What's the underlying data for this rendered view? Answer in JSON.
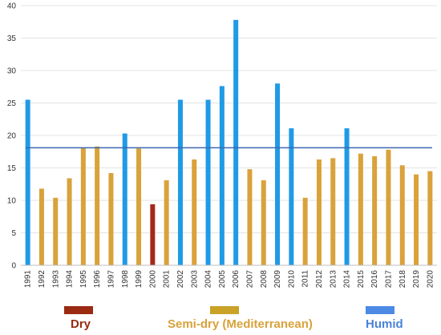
{
  "chart_data": {
    "type": "bar",
    "title": "",
    "xlabel": "",
    "ylabel": "",
    "ylim": [
      0,
      40
    ],
    "yticks": [
      0,
      5,
      10,
      15,
      20,
      25,
      30,
      35,
      40
    ],
    "grid": true,
    "categories": [
      "1991",
      "1992",
      "1993",
      "1994",
      "1995",
      "1996",
      "1997",
      "1998",
      "1999",
      "2000",
      "2001",
      "2002",
      "2003",
      "2004",
      "2005",
      "2006",
      "2007",
      "2008",
      "2009",
      "2010",
      "2011",
      "2012",
      "2013",
      "2014",
      "2015",
      "2016",
      "2017",
      "2018",
      "2019",
      "2020"
    ],
    "values": [
      25.5,
      11.8,
      10.4,
      13.4,
      18.1,
      18.3,
      14.2,
      20.3,
      18.0,
      9.4,
      13.1,
      25.5,
      16.3,
      25.5,
      27.6,
      37.8,
      14.8,
      13.1,
      28.0,
      21.1,
      10.4,
      16.3,
      16.5,
      21.1,
      17.2,
      16.8,
      17.8,
      15.4,
      14.0,
      14.5
    ],
    "classes": [
      "humid",
      "semidry",
      "semidry",
      "semidry",
      "semidry",
      "semidry",
      "semidry",
      "humid",
      "semidry",
      "dry",
      "semidry",
      "humid",
      "semidry",
      "humid",
      "humid",
      "humid",
      "semidry",
      "semidry",
      "humid",
      "humid",
      "semidry",
      "semidry",
      "semidry",
      "humid",
      "semidry",
      "semidry",
      "semidry",
      "semidry",
      "semidry",
      "semidry"
    ],
    "mean_line": 18.1,
    "colors": {
      "humid": "#1f9ae6",
      "semidry": "#d9a23a",
      "dry": "#a3281a",
      "mean_line": "#3e68b0"
    },
    "legend": {
      "position": "bottom",
      "items": [
        {
          "key": "dry",
          "label": "Dry",
          "swatch": "#9a2a12",
          "text_color": "#9a2a12"
        },
        {
          "key": "semidry",
          "label": "Semi-dry (Mediterranean)",
          "swatch": "#c9a227",
          "text_color": "#d9a23a"
        },
        {
          "key": "humid",
          "label": "Humid",
          "swatch": "#4d8ae6",
          "text_color": "#4a82d8"
        }
      ]
    }
  }
}
